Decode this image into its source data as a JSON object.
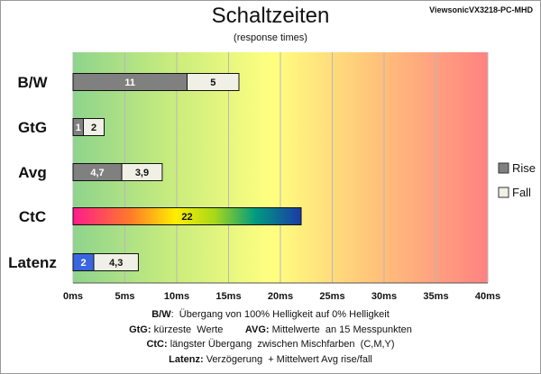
{
  "title": "Schaltzeiten",
  "subtitle": "(response times)",
  "model": "ViewsonicVX3218-PC-MHD",
  "chart_data": {
    "type": "bar",
    "orientation": "horizontal",
    "stacked": true,
    "categories": [
      "B/W",
      "GtG",
      "Avg",
      "CtC",
      "Latenz"
    ],
    "series": [
      {
        "name": "Rise",
        "color": "#808080",
        "values": [
          11,
          1,
          4.7,
          null,
          null
        ],
        "labels": [
          "11",
          "1",
          "4,7",
          "",
          ""
        ]
      },
      {
        "name": "Fall",
        "color": "#f0f0e6",
        "values": [
          5,
          2,
          3.9,
          null,
          4.3
        ],
        "labels": [
          "5",
          "2",
          "3,9",
          "",
          "4,3"
        ]
      }
    ],
    "special_bars": [
      {
        "category": "CtC",
        "value": 22,
        "label": "22",
        "style": "rainbow"
      },
      {
        "category": "Latenz",
        "value": 2,
        "label": "2",
        "style": "blue",
        "color": "#3a67e0"
      }
    ],
    "xlim": [
      0,
      40
    ],
    "xticks": [
      0,
      5,
      10,
      15,
      20,
      25,
      30,
      35,
      40
    ],
    "xtick_labels": [
      "0ms",
      "5ms",
      "10ms",
      "15ms",
      "20ms",
      "25ms",
      "30ms",
      "35ms",
      "40ms"
    ],
    "background": "gradient green-yellow-red",
    "grid": true,
    "legend": {
      "position": "right",
      "entries": [
        "Rise",
        "Fall"
      ]
    }
  },
  "notes": [
    [
      {
        "b": "B/W"
      },
      {
        "t": ":  Übergang von 100% Helligkeit auf 0% Helligkeit"
      }
    ],
    [
      {
        "b": "GtG:"
      },
      {
        "t": " kürzeste  Werte        "
      },
      {
        "b": "AVG:"
      },
      {
        "t": " Mittelwerte  an 15 Messpunkten"
      }
    ],
    [
      {
        "b": "CtC:"
      },
      {
        "t": " längster Übergang  zwischen Mischfarben  (C,M,Y)"
      }
    ],
    [
      {
        "b": "Latenz:"
      },
      {
        "t": " Verzögerung  + Mittelwert Avg rise/fall"
      }
    ]
  ]
}
